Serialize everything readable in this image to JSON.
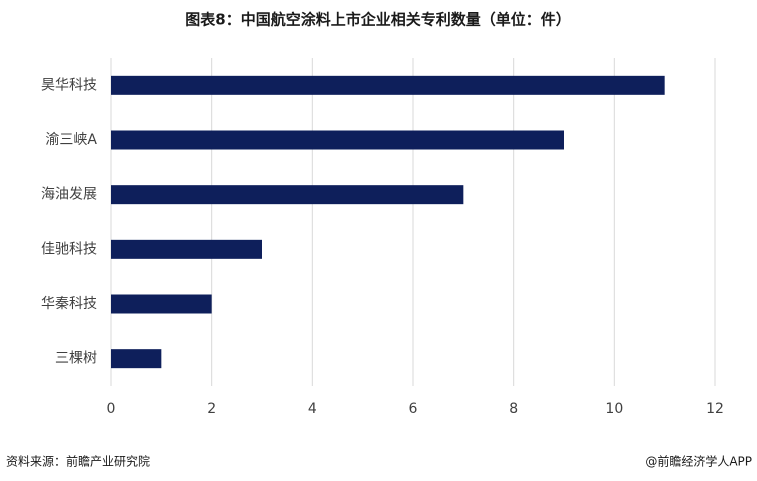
{
  "chart_data": {
    "type": "bar",
    "orientation": "horizontal",
    "title": "图表8：中国航空涂料上市企业相关专利数量（单位：件）",
    "categories": [
      "昊华科技",
      "渝三峡A",
      "海油发展",
      "佳驰科技",
      "华秦科技",
      "三棵树"
    ],
    "values": [
      11,
      9,
      7,
      3,
      2,
      1
    ],
    "color": "#0e1f5b",
    "xlim": [
      0,
      12
    ],
    "xticks": [
      0,
      2,
      4,
      6,
      8,
      10,
      12
    ],
    "grid": true,
    "source": "资料来源：前瞻产业研究院",
    "credit": "@前瞻经济学人APP"
  }
}
